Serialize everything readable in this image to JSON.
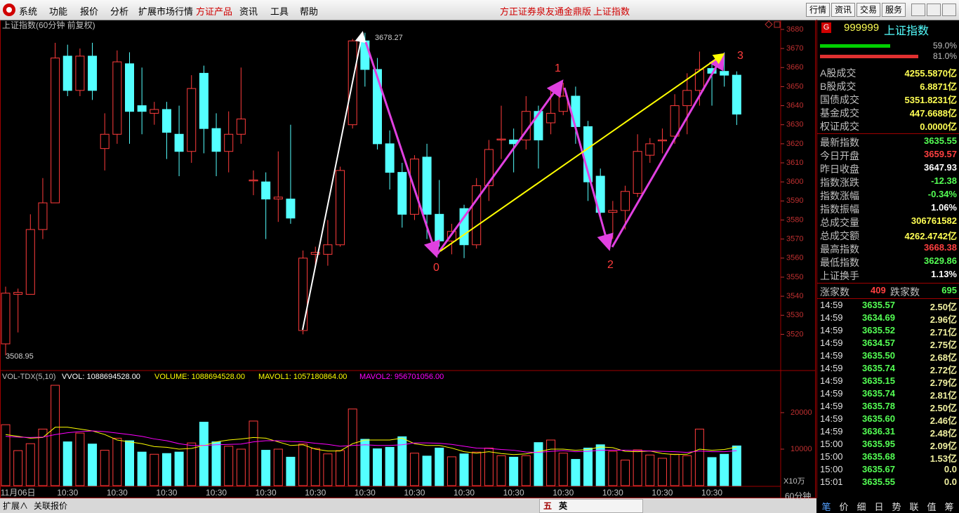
{
  "menu": {
    "items": [
      "系统",
      "功能",
      "报价",
      "分析",
      "扩展市场行情",
      "方证产品",
      "资讯",
      "工具",
      "帮助"
    ],
    "app_title": "方正证券泉友通金鼎版",
    "index_name": "上证指数",
    "buttons": [
      "行情",
      "资讯",
      "交易",
      "服务"
    ]
  },
  "chart_data": [
    {
      "type": "candlestick",
      "title": "上证指数(60分钟 前复权)",
      "categories": [
        null,
        "11月06日",
        null,
        null,
        null,
        "10:30",
        null,
        null,
        null,
        "10:30",
        null,
        null,
        null,
        "10:30",
        null,
        null,
        null,
        "10:30",
        null,
        null,
        null,
        "10:30",
        null,
        null,
        null,
        "10:30",
        null,
        null,
        null,
        "10:30",
        null,
        null,
        null,
        "10:30",
        null,
        null,
        null,
        "10:30",
        null,
        null,
        null,
        "10:30",
        null,
        null,
        null,
        "10:30",
        null,
        null,
        null,
        "10:30",
        null,
        null,
        null,
        "10:30",
        null,
        null,
        null,
        "10:30",
        null,
        null
      ],
      "open": [
        3515,
        3541,
        3541,
        3575,
        3589,
        3666,
        3648,
        3666,
        3617.5,
        3625,
        3662,
        3640,
        3636,
        3638,
        3625,
        3616,
        3657,
        3628,
        3616,
        3625,
        3600.5,
        3600,
        3591,
        3591,
        3522,
        3562,
        3562,
        3567,
        3630,
        3674,
        3659,
        3620,
        3605,
        3583,
        3613,
        3583,
        3569,
        3586,
        3567,
        3598,
        3622,
        3622,
        3622,
        3637,
        3631,
        3637,
        3645,
        3629,
        3603,
        3584,
        3585,
        3594,
        3614,
        3621.5,
        3624,
        3640,
        3648,
        3659.5,
        3658,
        3656
      ],
      "high": [
        3545,
        3544,
        3583,
        3602,
        3673,
        3672,
        3670,
        3673,
        3636,
        3669,
        3668,
        3660,
        3642,
        3642,
        3640,
        3656,
        3661,
        3636,
        3637,
        3660,
        3606,
        3605,
        3616,
        3630,
        3564,
        3566,
        3580,
        3608,
        3675,
        3678.27,
        3665,
        3627,
        3610,
        3614,
        3620,
        3601,
        3578,
        3588,
        3602,
        3622,
        3640,
        3628,
        3645,
        3640,
        3650,
        3652,
        3650,
        3632,
        3607,
        3590,
        3598,
        3625,
        3623,
        3628,
        3646,
        3657,
        3668.38,
        3663,
        3668,
        3658
      ],
      "low": [
        3508.95,
        3521,
        3541,
        3570,
        3589,
        3645,
        3645,
        3643,
        3606,
        3620,
        3620,
        3625,
        3630,
        3612,
        3603,
        3610,
        3615,
        3603,
        3605,
        3620,
        3593,
        3570,
        3579,
        3578,
        3520,
        3555,
        3556,
        3566,
        3628,
        3650,
        3617,
        3596,
        3576,
        3580,
        3570,
        3566,
        3562,
        3560,
        3565,
        3590,
        3612,
        3605,
        3617,
        3607,
        3625,
        3635,
        3620,
        3590,
        3580,
        3570,
        3575,
        3592,
        3610,
        3615,
        3620,
        3625,
        3640,
        3640,
        3650,
        3629.86
      ],
      "close": [
        3541.6,
        3542,
        3575,
        3589,
        3665,
        3648,
        3666,
        3648,
        3625,
        3663,
        3637,
        3637,
        3638,
        3626,
        3616,
        3649,
        3628,
        3616,
        3625,
        3633,
        3601,
        3591,
        3592,
        3581,
        3560,
        3563,
        3567,
        3606,
        3674,
        3659,
        3620,
        3605,
        3583,
        3612,
        3583,
        3569,
        3574,
        3567,
        3598,
        3617,
        3622.5,
        3620,
        3637,
        3622,
        3636,
        3645,
        3629,
        3600,
        3584,
        3585,
        3595,
        3616,
        3620,
        3622,
        3640,
        3648,
        3659,
        3657,
        3656,
        3635.55
      ],
      "up_color": "#ff3c3c",
      "down_color": "#54ffff",
      "ylim": [
        3501,
        3684.4
      ],
      "yticks": [
        3520,
        3530,
        3540,
        3550,
        3560,
        3570,
        3580,
        3590,
        3600,
        3610,
        3620,
        3630,
        3640,
        3650,
        3660,
        3670,
        3680
      ],
      "annotations": {
        "high_label": "3678.27",
        "low_label": "3508.95",
        "waves": [
          "0",
          "1",
          "2",
          "3"
        ]
      }
    },
    {
      "type": "bar",
      "legend": [
        "VOL-TDX(5,10)",
        "VVOL: 1088694528.00",
        "VOLUME: 1088694528.00",
        "MAVOL1: 1057180864.00",
        "MAVOL2: 956701056.00"
      ],
      "values": [
        16700,
        9600,
        11500,
        15500,
        27500,
        12000,
        14400,
        11400,
        9700,
        13000,
        12300,
        9200,
        8600,
        8800,
        9200,
        11700,
        17400,
        12000,
        10800,
        10000,
        17700,
        9700,
        10000,
        7800,
        11400,
        10200,
        8700,
        9600,
        21000,
        12700,
        10100,
        10500,
        13400,
        8900,
        8100,
        10300,
        7900,
        8700,
        9200,
        10300,
        8200,
        7800,
        8200,
        11800,
        12500,
        8900,
        7200,
        10300,
        11200,
        9400,
        7000,
        9800,
        8400,
        7500,
        8600,
        8200,
        15500,
        7700,
        8600,
        10887
      ],
      "lines": [
        {
          "color": "#ffff00",
          "values": [
            14000,
            13500,
            13000,
            13200,
            16000,
            16000,
            15500,
            15000,
            14000,
            12500,
            12000,
            11500,
            10700,
            10500,
            10000,
            10200,
            11000,
            12000,
            12500,
            12800,
            13200,
            13000,
            12000,
            11000,
            11200,
            10000,
            9500,
            9500,
            11500,
            12500,
            12500,
            12500,
            13000,
            11500,
            11000,
            11000,
            10300,
            9300,
            8900,
            9300,
            8800,
            8500,
            8700,
            9300,
            10000,
            10000,
            9700,
            9900,
            10600,
            10400,
            9400,
            9300,
            9500,
            8800,
            8500,
            8600,
            10000,
            9700,
            9900,
            10572
          ]
        },
        {
          "color": "#ff00ff",
          "values": [
            13500,
            13300,
            13200,
            13300,
            14000,
            14500,
            14800,
            15000,
            14800,
            14400,
            14000,
            13500,
            12800,
            12300,
            11500,
            11000,
            11000,
            11200,
            11300,
            11400,
            12000,
            12300,
            12300,
            12100,
            12000,
            11600,
            11300,
            10800,
            11000,
            11200,
            11000,
            11000,
            11200,
            11700,
            11700,
            11600,
            11300,
            10800,
            10300,
            10200,
            9900,
            9700,
            9200,
            9100,
            9400,
            9600,
            9300,
            9400,
            9700,
            9700,
            9700,
            9600,
            9500,
            9400,
            9300,
            9100,
            9500,
            9300,
            9300,
            9567
          ]
        }
      ],
      "ylim": [
        0,
        31540
      ],
      "yticks": [
        10000,
        20000
      ],
      "unit_label": "X10万"
    }
  ],
  "quote_panel": {
    "badge": "G",
    "code": "999999",
    "name": "上证指数",
    "ratio_labels": [
      "59.0%",
      "81.0%"
    ],
    "rows": [
      [
        "A股成交",
        "4255.5870亿"
      ],
      [
        "B股成交",
        "6.8871亿"
      ],
      [
        "国债成交",
        "5351.8231亿"
      ],
      [
        "基金成交",
        "447.6688亿"
      ],
      [
        "权证成交",
        "0.0000亿"
      ],
      [
        "最新指数",
        "3635.55"
      ],
      [
        "今日开盘",
        "3659.57"
      ],
      [
        "昨日收盘",
        "3647.93"
      ],
      [
        "指数涨跌",
        "-12.38"
      ],
      [
        "指数涨幅",
        "-0.34%"
      ],
      [
        "指数振幅",
        "1.06%"
      ],
      [
        "总成交量",
        "306761582"
      ],
      [
        "总成交额",
        "4262.4742亿"
      ],
      [
        "最高指数",
        "3668.38"
      ],
      [
        "最低指数",
        "3629.86"
      ],
      [
        "上证换手",
        "1.13%"
      ]
    ],
    "advance_label": "涨家数",
    "advance": "409",
    "decline_label": "跌家数",
    "decline": "695",
    "ticks": [
      [
        "14:59",
        "3635.57",
        "2.50亿"
      ],
      [
        "14:59",
        "3634.69",
        "2.96亿"
      ],
      [
        "14:59",
        "3635.52",
        "2.71亿"
      ],
      [
        "14:59",
        "3634.57",
        "2.75亿"
      ],
      [
        "14:59",
        "3635.50",
        "2.68亿"
      ],
      [
        "14:59",
        "3635.74",
        "2.72亿"
      ],
      [
        "14:59",
        "3635.15",
        "2.79亿"
      ],
      [
        "14:59",
        "3635.74",
        "2.81亿"
      ],
      [
        "14:59",
        "3635.78",
        "2.50亿"
      ],
      [
        "14:59",
        "3635.60",
        "2.46亿"
      ],
      [
        "14:59",
        "3636.31",
        "2.48亿"
      ],
      [
        "15:00",
        "3635.95",
        "2.09亿"
      ],
      [
        "15:00",
        "3635.68",
        "1.53亿"
      ],
      [
        "15:00",
        "3635.67",
        "0.0"
      ],
      [
        "15:01",
        "3635.55",
        "0.0"
      ]
    ]
  },
  "bottom": {
    "left": [
      "扩展∧",
      "关联报价"
    ],
    "toolbar": [
      "五",
      "英"
    ],
    "period": "60分钟",
    "tabs": [
      "笔",
      "价",
      "细",
      "日",
      "势",
      "联",
      "值",
      "筹"
    ]
  }
}
